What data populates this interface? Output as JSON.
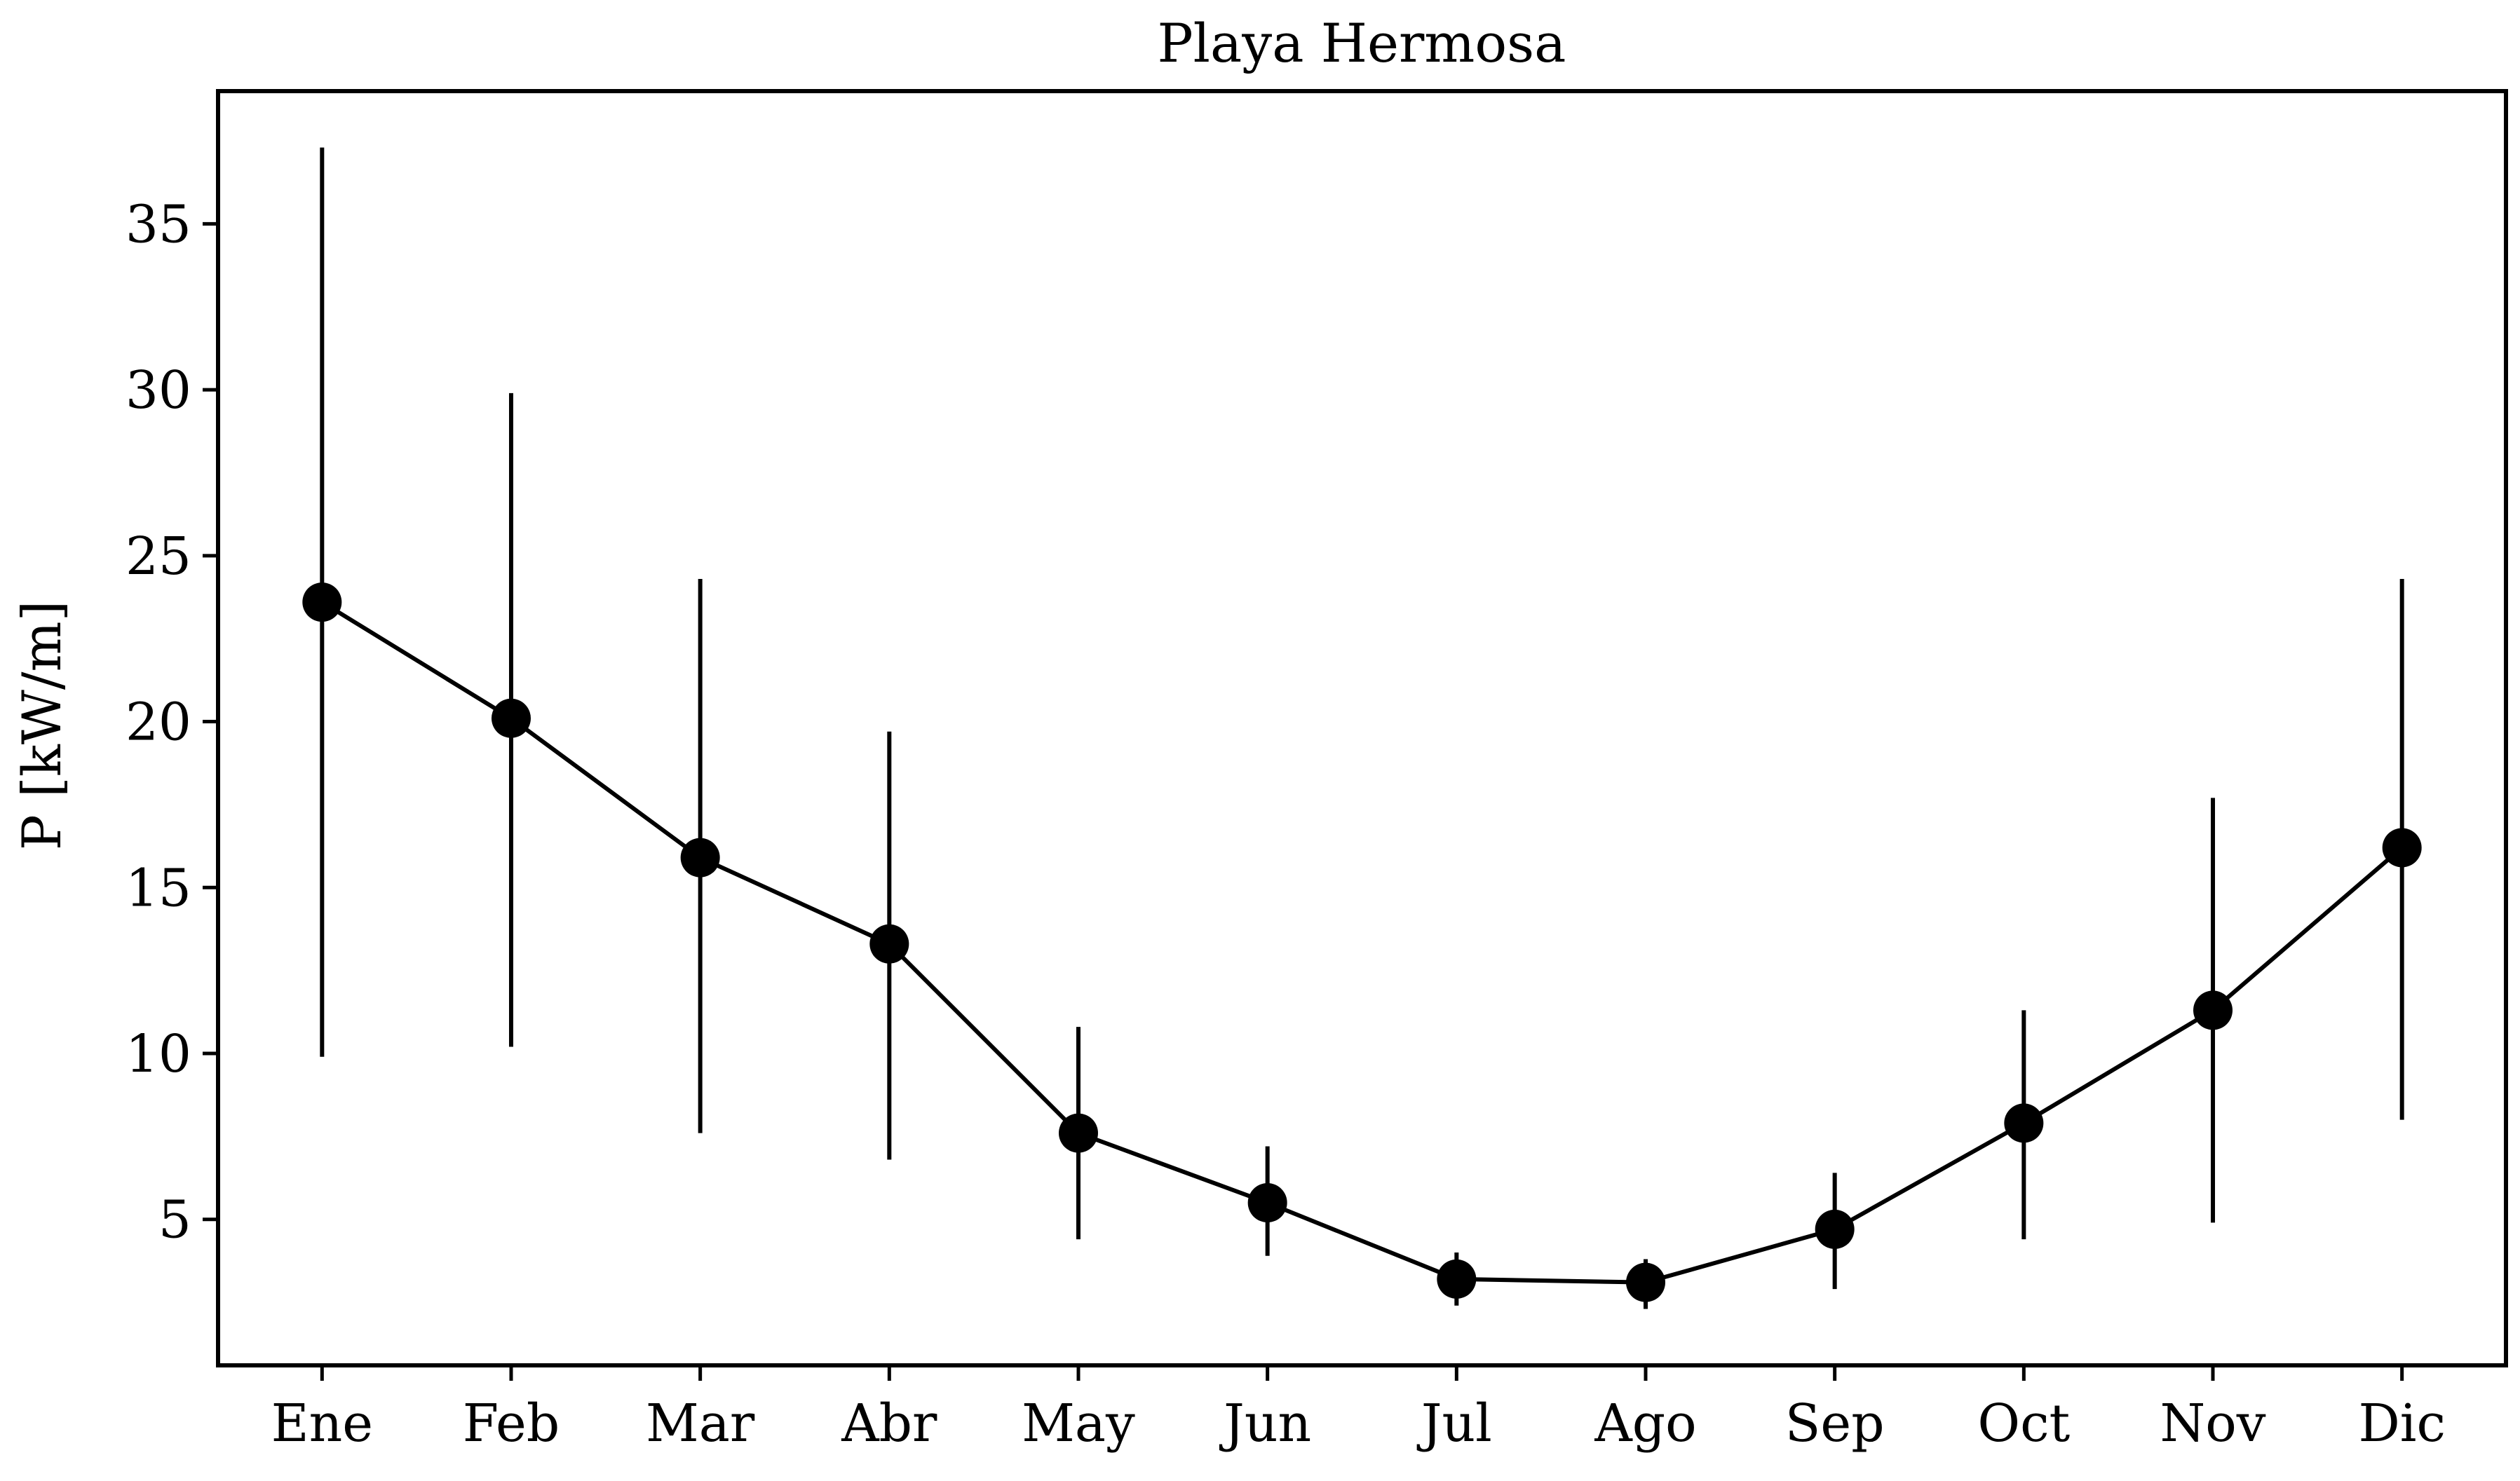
{
  "chart_data": {
    "type": "line",
    "title": "Playa Hermosa",
    "xlabel": "",
    "ylabel": "P [kW/m]",
    "categories": [
      "Ene",
      "Feb",
      "Mar",
      "Abr",
      "May",
      "Jun",
      "Jul",
      "Ago",
      "Sep",
      "Oct",
      "Nov",
      "Dic"
    ],
    "series": [
      {
        "name": "P",
        "values": [
          23.6,
          20.1,
          15.9,
          13.3,
          7.6,
          5.5,
          3.2,
          3.1,
          4.7,
          7.9,
          11.3,
          16.2
        ],
        "error_low": [
          9.9,
          10.2,
          7.6,
          6.8,
          4.4,
          3.9,
          2.4,
          2.3,
          2.9,
          4.4,
          4.9,
          8.0
        ],
        "error_high": [
          37.3,
          29.9,
          24.3,
          19.7,
          10.8,
          7.2,
          4.0,
          3.8,
          6.4,
          11.3,
          17.7,
          24.3
        ]
      }
    ],
    "yticks": [
      5,
      10,
      15,
      20,
      25,
      30,
      35
    ],
    "ylim": [
      0.6,
      39.0
    ],
    "xlim": [
      -0.55,
      11.55
    ],
    "grid": false,
    "legend": "none",
    "color": "#000000"
  }
}
